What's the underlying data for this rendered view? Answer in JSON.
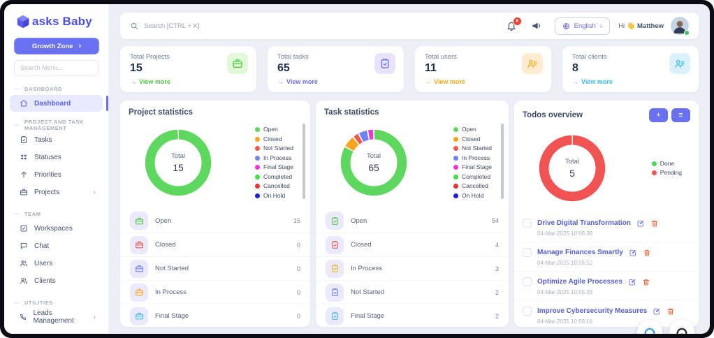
{
  "glyphs": {
    "chevron_right": "›",
    "view_more_arrow": "→",
    "section_dash": "—"
  },
  "sidebar": {
    "logo_text": "asks Baby",
    "growth_zone_label": "Growth Zone",
    "search_placeholder": "Search Menu...",
    "sections": [
      {
        "title": "DASHBOARD",
        "items": [
          {
            "label": "Dashboard",
            "icon": "home",
            "active": true
          }
        ]
      },
      {
        "title": "PROJECT AND TASK MANAGEMENT",
        "items": [
          {
            "label": "Tasks",
            "icon": "clipboard"
          },
          {
            "label": "Statuses",
            "icon": "grid"
          },
          {
            "label": "Priorities",
            "icon": "arrow-up"
          },
          {
            "label": "Projects",
            "icon": "briefcase",
            "chevron": true
          }
        ]
      },
      {
        "title": "TEAM",
        "items": [
          {
            "label": "Workspaces",
            "icon": "check-square"
          },
          {
            "label": "Chat",
            "icon": "chat"
          },
          {
            "label": "Users",
            "icon": "users"
          },
          {
            "label": "Clients",
            "icon": "users"
          }
        ]
      },
      {
        "title": "UTILITIES",
        "items": [
          {
            "label": "Leads Management",
            "icon": "phone",
            "chevron": true
          }
        ]
      }
    ]
  },
  "topbar": {
    "search_placeholder": "Search [CTRL + K]",
    "notification_count": "8",
    "language_label": "English",
    "greeting": "Hi",
    "wave_emoji": "👋",
    "username": "Matthew"
  },
  "stats": [
    {
      "label": "Total Projects",
      "value": "15",
      "link_label": "View more",
      "icon": "briefcase",
      "accent": "#52c94a",
      "icon_bg": "#e1f8d9"
    },
    {
      "label": "Total tasks",
      "value": "65",
      "link_label": "View more",
      "icon": "clipboard",
      "accent": "#6d6cf5",
      "icon_bg": "#e5e4fc"
    },
    {
      "label": "Total users",
      "value": "11",
      "link_label": "View more",
      "icon": "user-lines",
      "accent": "#f7a823",
      "icon_bg": "#fdeccf"
    },
    {
      "label": "Total clients",
      "value": "8",
      "link_label": "View more",
      "icon": "user-lines",
      "accent": "#3cbcee",
      "icon_bg": "#d9f2fc"
    }
  ],
  "cards": {
    "project": {
      "title": "Project statistics",
      "center_label": "Total",
      "total": "15",
      "row_icon": "briefcase",
      "rows": [
        {
          "label": "Open",
          "value": "15",
          "color": "#52c94a"
        },
        {
          "label": "Closed",
          "value": "0",
          "color": "#f4564c"
        },
        {
          "label": "Not Started",
          "value": "0",
          "color": "#6d83f6"
        },
        {
          "label": "In Process",
          "value": "0",
          "color": "#f7a823"
        },
        {
          "label": "Final Stage",
          "value": "0",
          "color": "#3cbcee"
        }
      ]
    },
    "task": {
      "title": "Task statistics",
      "center_label": "Total",
      "total": "65",
      "row_icon": "clipboard",
      "rows": [
        {
          "label": "Open",
          "value": "54",
          "color": "#52c94a"
        },
        {
          "label": "Closed",
          "value": "4",
          "color": "#f4564c"
        },
        {
          "label": "In Process",
          "value": "3",
          "color": "#f7a823"
        },
        {
          "label": "Not Started",
          "value": "2",
          "color": "#6d83f6"
        },
        {
          "label": "Final Stage",
          "value": "2",
          "color": "#3cbcee"
        }
      ]
    },
    "todos": {
      "title": "Todos overview",
      "center_label": "Total",
      "total": "5",
      "add_button": "+",
      "menu_button": "≡",
      "items": [
        {
          "title": "Drive Digital Transformation",
          "datetime": "04-Mar-2025 10:56:39"
        },
        {
          "title": "Manage Finances Smartly",
          "datetime": "04-Mar-2025 10:55:52"
        },
        {
          "title": "Optimize Agile Processes",
          "datetime": "04-Mar-2025 10:55:33"
        },
        {
          "title": "Improve Cybersecurity Measures",
          "datetime": "04-Mar-2025 10:55:16"
        }
      ]
    }
  },
  "chart_data": [
    {
      "type": "pie",
      "title": "Project statistics",
      "center_label": "Total",
      "total": 15,
      "legend_position": "right",
      "series": [
        {
          "name": "Open",
          "value": 15,
          "color": "#5ed75e"
        },
        {
          "name": "Closed",
          "value": 0,
          "color": "#ffa21c"
        },
        {
          "name": "Not Started",
          "value": 0,
          "color": "#f4564c"
        },
        {
          "name": "In Process",
          "value": 0,
          "color": "#6d83f6"
        },
        {
          "name": "Final Stage",
          "value": 0,
          "color": "#f233d6"
        },
        {
          "name": "Completed",
          "value": 0,
          "color": "#43df47"
        },
        {
          "name": "Cancelled",
          "value": 0,
          "color": "#ee2f2f"
        },
        {
          "name": "On Hold",
          "value": 0,
          "color": "#1c1fe0"
        }
      ]
    },
    {
      "type": "pie",
      "title": "Task statistics",
      "center_label": "Total",
      "total": 65,
      "legend_position": "right",
      "series": [
        {
          "name": "Open",
          "value": 54,
          "color": "#5ed75e"
        },
        {
          "name": "Closed",
          "value": 4,
          "color": "#ffa21c"
        },
        {
          "name": "Not Started",
          "value": 2,
          "color": "#f4564c"
        },
        {
          "name": "In Process",
          "value": 3,
          "color": "#6d83f6"
        },
        {
          "name": "Final Stage",
          "value": 2,
          "color": "#f233d6"
        },
        {
          "name": "Completed",
          "value": 0,
          "color": "#43df47"
        },
        {
          "name": "Cancelled",
          "value": 0,
          "color": "#ee2f2f"
        },
        {
          "name": "On Hold",
          "value": 0,
          "color": "#1c1fe0"
        }
      ]
    },
    {
      "type": "pie",
      "title": "Todos overview",
      "center_label": "Total",
      "total": 5,
      "legend_position": "right",
      "series": [
        {
          "name": "Done",
          "value": 0,
          "color": "#52d45b"
        },
        {
          "name": "Pending",
          "value": 5,
          "color": "#f05352"
        }
      ]
    }
  ]
}
